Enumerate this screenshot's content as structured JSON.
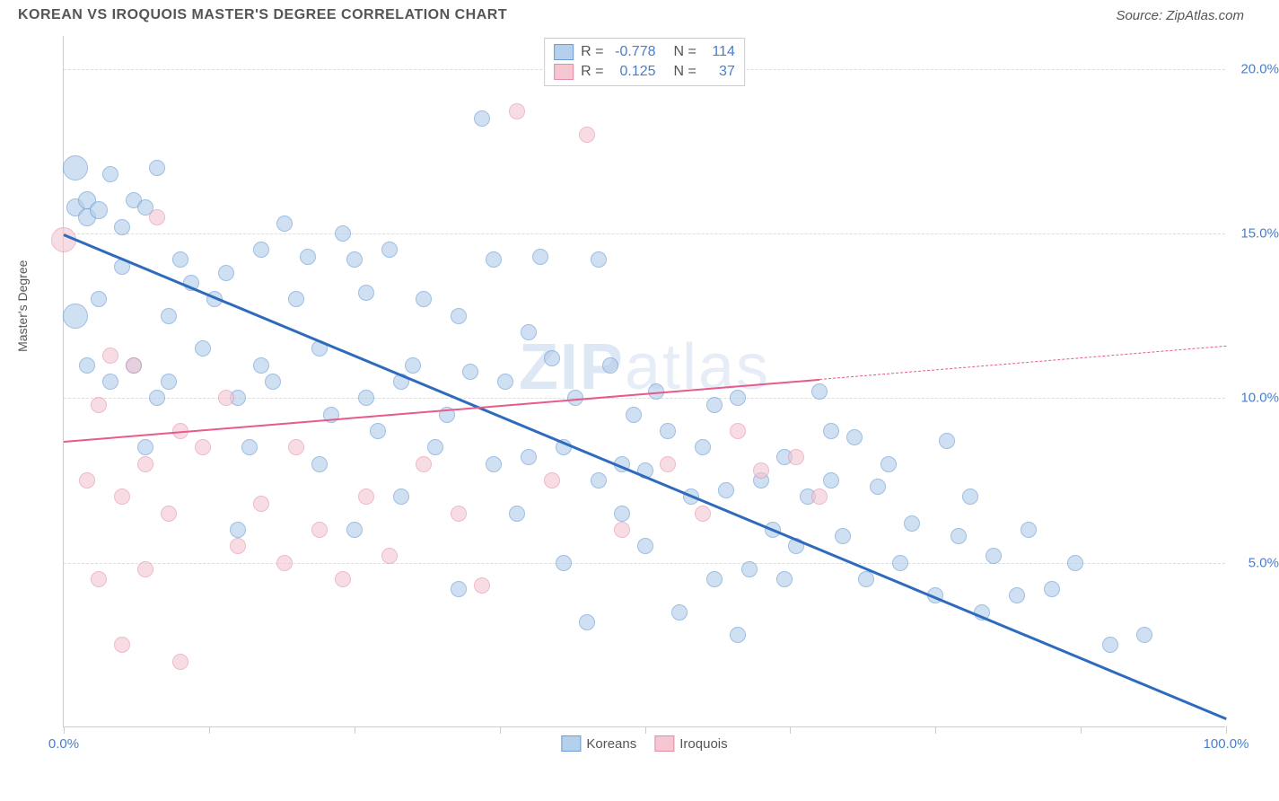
{
  "title": "KOREAN VS IROQUOIS MASTER'S DEGREE CORRELATION CHART",
  "source": "Source: ZipAtlas.com",
  "y_axis_label": "Master's Degree",
  "watermark_bold": "ZIP",
  "watermark_light": "atlas",
  "chart": {
    "type": "scatter",
    "xlim": [
      0,
      100
    ],
    "ylim": [
      0,
      21
    ],
    "x_ticks": [
      0,
      12.5,
      25,
      37.5,
      50,
      62.5,
      75,
      87.5,
      100
    ],
    "x_tick_labels": {
      "0": "0.0%",
      "100": "100.0%"
    },
    "y_ticks": [
      5,
      10,
      15,
      20
    ],
    "y_tick_labels": {
      "5": "5.0%",
      "10": "10.0%",
      "15": "15.0%",
      "20": "20.0%"
    },
    "grid_color": "#dddddd",
    "axis_color": "#cccccc",
    "background_color": "#ffffff",
    "series": [
      {
        "name": "Koreans",
        "fill_color": "#b4d0ec",
        "stroke_color": "#6d9cd4",
        "fill_opacity": 0.65,
        "marker_radius": 9,
        "trend": {
          "x1": 0,
          "y1": 15.0,
          "x2": 100,
          "y2": 0.3,
          "solid_until_x": 100,
          "color": "#2e6bbd",
          "width": 3
        },
        "R": "-0.778",
        "N": "114",
        "points": [
          [
            1,
            17,
            14
          ],
          [
            1,
            12.5,
            14
          ],
          [
            1,
            15.8,
            10
          ],
          [
            2,
            15.5,
            10
          ],
          [
            2,
            16,
            10
          ],
          [
            3,
            15.7,
            10
          ],
          [
            4,
            16.8,
            9
          ],
          [
            5,
            15.2,
            9
          ],
          [
            2,
            11,
            9
          ],
          [
            3,
            13,
            9
          ],
          [
            5,
            14,
            9
          ],
          [
            6,
            16,
            9
          ],
          [
            7,
            15.8,
            9
          ],
          [
            8,
            17,
            9
          ],
          [
            9,
            10.5,
            9
          ],
          [
            10,
            14.2,
            9
          ],
          [
            4,
            10.5,
            9
          ],
          [
            6,
            11,
            9
          ],
          [
            7,
            8.5,
            9
          ],
          [
            8,
            10,
            9
          ],
          [
            9,
            12.5,
            9
          ],
          [
            11,
            13.5,
            9
          ],
          [
            12,
            11.5,
            9
          ],
          [
            13,
            13,
            9
          ],
          [
            14,
            13.8,
            9
          ],
          [
            15,
            6,
            9
          ],
          [
            15,
            10,
            9
          ],
          [
            16,
            8.5,
            9
          ],
          [
            17,
            11,
            9
          ],
          [
            17,
            14.5,
            9
          ],
          [
            18,
            10.5,
            9
          ],
          [
            19,
            15.3,
            9
          ],
          [
            20,
            13,
            9
          ],
          [
            21,
            14.3,
            9
          ],
          [
            22,
            11.5,
            9
          ],
          [
            22,
            8,
            9
          ],
          [
            23,
            9.5,
            9
          ],
          [
            24,
            15,
            9
          ],
          [
            25,
            6,
            9
          ],
          [
            25,
            14.2,
            9
          ],
          [
            26,
            10,
            9
          ],
          [
            26,
            13.2,
            9
          ],
          [
            27,
            9,
            9
          ],
          [
            28,
            14.5,
            9
          ],
          [
            29,
            10.5,
            9
          ],
          [
            29,
            7,
            9
          ],
          [
            30,
            11,
            9
          ],
          [
            31,
            13,
            9
          ],
          [
            32,
            8.5,
            9
          ],
          [
            33,
            9.5,
            9
          ],
          [
            34,
            12.5,
            9
          ],
          [
            34,
            4.2,
            9
          ],
          [
            35,
            10.8,
            9
          ],
          [
            36,
            18.5,
            9
          ],
          [
            37,
            14.2,
            9
          ],
          [
            37,
            8,
            9
          ],
          [
            38,
            10.5,
            9
          ],
          [
            39,
            6.5,
            9
          ],
          [
            40,
            8.2,
            9
          ],
          [
            40,
            12,
            9
          ],
          [
            41,
            14.3,
            9
          ],
          [
            42,
            11.2,
            9
          ],
          [
            43,
            8.5,
            9
          ],
          [
            43,
            5,
            9
          ],
          [
            44,
            10,
            9
          ],
          [
            45,
            3.2,
            9
          ],
          [
            46,
            7.5,
            9
          ],
          [
            46,
            14.2,
            9
          ],
          [
            47,
            11,
            9
          ],
          [
            48,
            8,
            9
          ],
          [
            48,
            6.5,
            9
          ],
          [
            49,
            9.5,
            9
          ],
          [
            50,
            7.8,
            9
          ],
          [
            50,
            5.5,
            9
          ],
          [
            51,
            10.2,
            9
          ],
          [
            52,
            9,
            9
          ],
          [
            53,
            3.5,
            9
          ],
          [
            54,
            7,
            9
          ],
          [
            55,
            8.5,
            9
          ],
          [
            56,
            9.8,
            9
          ],
          [
            56,
            4.5,
            9
          ],
          [
            57,
            7.2,
            9
          ],
          [
            58,
            10,
            9
          ],
          [
            58,
            2.8,
            9
          ],
          [
            59,
            4.8,
            9
          ],
          [
            60,
            7.5,
            9
          ],
          [
            61,
            6,
            9
          ],
          [
            62,
            8.2,
            9
          ],
          [
            62,
            4.5,
            9
          ],
          [
            63,
            5.5,
            9
          ],
          [
            64,
            7,
            9
          ],
          [
            65,
            10.2,
            9
          ],
          [
            66,
            9,
            9
          ],
          [
            66,
            7.5,
            9
          ],
          [
            67,
            5.8,
            9
          ],
          [
            68,
            8.8,
            9
          ],
          [
            69,
            4.5,
            9
          ],
          [
            70,
            7.3,
            9
          ],
          [
            71,
            8,
            9
          ],
          [
            72,
            5,
            9
          ],
          [
            73,
            6.2,
            9
          ],
          [
            75,
            4,
            9
          ],
          [
            76,
            8.7,
            9
          ],
          [
            77,
            5.8,
            9
          ],
          [
            78,
            7,
            9
          ],
          [
            79,
            3.5,
            9
          ],
          [
            80,
            5.2,
            9
          ],
          [
            82,
            4,
            9
          ],
          [
            83,
            6,
            9
          ],
          [
            85,
            4.2,
            9
          ],
          [
            87,
            5,
            9
          ],
          [
            90,
            2.5,
            9
          ],
          [
            93,
            2.8,
            9
          ]
        ]
      },
      {
        "name": "Iroquois",
        "fill_color": "#f4c6d2",
        "stroke_color": "#e38da6",
        "fill_opacity": 0.6,
        "marker_radius": 9,
        "trend": {
          "x1": 0,
          "y1": 8.7,
          "x2": 100,
          "y2": 11.6,
          "solid_until_x": 65,
          "color": "#e75a8a",
          "width": 2
        },
        "R": "0.125",
        "N": "37",
        "points": [
          [
            0,
            14.8,
            14
          ],
          [
            2,
            7.5,
            9
          ],
          [
            3,
            9.8,
            9
          ],
          [
            3,
            4.5,
            9
          ],
          [
            4,
            11.3,
            9
          ],
          [
            5,
            7,
            9
          ],
          [
            5,
            2.5,
            9
          ],
          [
            6,
            11,
            9
          ],
          [
            7,
            8,
            9
          ],
          [
            7,
            4.8,
            9
          ],
          [
            8,
            15.5,
            9
          ],
          [
            9,
            6.5,
            9
          ],
          [
            10,
            9,
            9
          ],
          [
            10,
            2,
            9
          ],
          [
            12,
            8.5,
            9
          ],
          [
            14,
            10,
            9
          ],
          [
            15,
            5.5,
            9
          ],
          [
            17,
            6.8,
            9
          ],
          [
            19,
            5,
            9
          ],
          [
            20,
            8.5,
            9
          ],
          [
            22,
            6,
            9
          ],
          [
            24,
            4.5,
            9
          ],
          [
            26,
            7,
            9
          ],
          [
            28,
            5.2,
            9
          ],
          [
            31,
            8,
            9
          ],
          [
            34,
            6.5,
            9
          ],
          [
            36,
            4.3,
            9
          ],
          [
            39,
            18.7,
            9
          ],
          [
            42,
            7.5,
            9
          ],
          [
            45,
            18,
            9
          ],
          [
            48,
            6,
            9
          ],
          [
            52,
            8,
            9
          ],
          [
            55,
            6.5,
            9
          ],
          [
            58,
            9,
            9
          ],
          [
            60,
            7.8,
            9
          ],
          [
            63,
            8.2,
            9
          ],
          [
            65,
            7,
            9
          ]
        ]
      }
    ]
  },
  "legend_top": {
    "rows": [
      {
        "swatch_fill": "#b4d0ec",
        "swatch_border": "#6d9cd4",
        "r_label": "R =",
        "r_value": "-0.778",
        "n_label": "N =",
        "n_value": "114"
      },
      {
        "swatch_fill": "#f4c6d2",
        "swatch_border": "#e38da6",
        "r_label": "R =",
        "r_value": "0.125",
        "n_label": "N =",
        "n_value": "37"
      }
    ]
  },
  "legend_bottom": {
    "items": [
      {
        "swatch_fill": "#b4d0ec",
        "swatch_border": "#6d9cd4",
        "label": "Koreans"
      },
      {
        "swatch_fill": "#f4c6d2",
        "swatch_border": "#e38da6",
        "label": "Iroquois"
      }
    ]
  }
}
